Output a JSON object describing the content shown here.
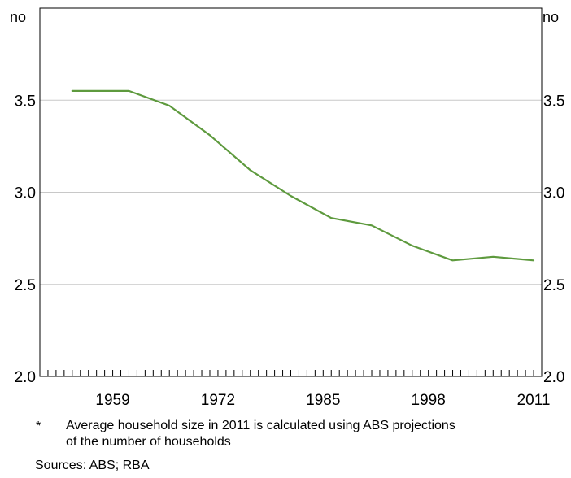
{
  "chart_data": {
    "type": "line",
    "title": "",
    "xlabel": "",
    "ylabel_left": "no",
    "ylabel_right": "no",
    "x": [
      1954,
      1961,
      1966,
      1971,
      1976,
      1981,
      1986,
      1991,
      1996,
      2001,
      2006,
      2011
    ],
    "series": [
      {
        "name": "",
        "values": [
          3.55,
          3.55,
          3.47,
          3.31,
          3.12,
          2.98,
          2.86,
          2.82,
          2.71,
          2.63,
          2.65,
          2.63
        ]
      }
    ],
    "xticks": [
      1959,
      1972,
      1985,
      1998,
      2011
    ],
    "xlim": [
      1950,
      2012
    ],
    "ylim": [
      2.0,
      4.0
    ],
    "yticks": [
      "2.0",
      "2.5",
      "3.0",
      "3.5"
    ],
    "grid": true,
    "line_color": "#5e9a3e"
  },
  "footnote": {
    "marker": "*",
    "line1": "Average household size in 2011 is calculated using ABS projections",
    "line2": "of the number of households"
  },
  "sources": "Sources:   ABS; RBA"
}
